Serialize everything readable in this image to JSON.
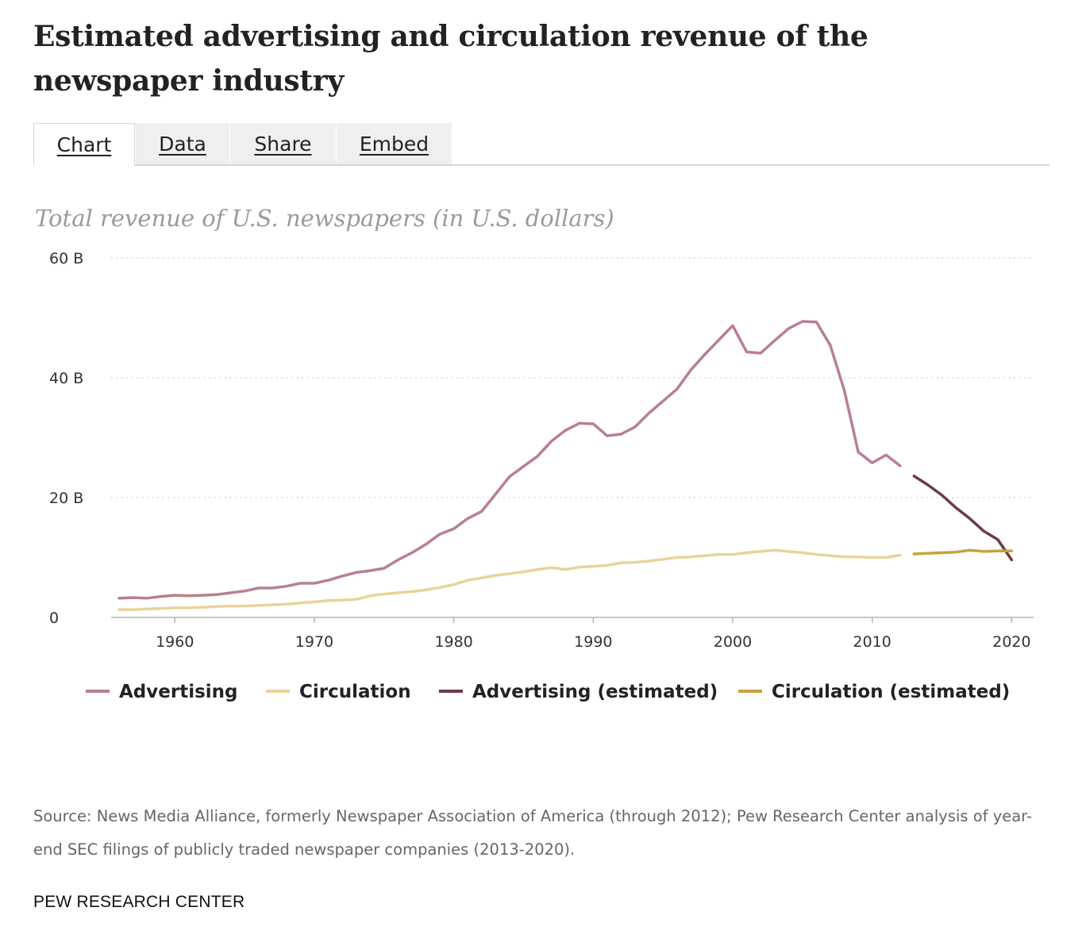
{
  "title": "Estimated advertising and circulation revenue of the newspaper industry",
  "tabs": [
    {
      "label": "Chart",
      "active": true
    },
    {
      "label": "Data",
      "active": false
    },
    {
      "label": "Share",
      "active": false
    },
    {
      "label": "Embed",
      "active": false
    }
  ],
  "source": "Source: News Media Alliance, formerly Newspaper Association of America (through 2012); Pew Research Center analysis of year-end SEC filings of publicly traded newspaper companies (2013-2020).",
  "brand": "PEW RESEARCH CENTER",
  "chart_data": {
    "type": "line",
    "title": "Total revenue of U.S. newspapers (in U.S. dollars)",
    "xlabel": "",
    "ylabel": "",
    "xlim": [
      1956,
      2021
    ],
    "ylim": [
      0,
      60
    ],
    "y_ticks": [
      0,
      20,
      40,
      60
    ],
    "y_tick_labels": [
      "0",
      "20 B",
      "40 B",
      "60 B"
    ],
    "x_ticks": [
      1960,
      1970,
      1980,
      1990,
      2000,
      2010,
      2020
    ],
    "x_tick_labels": [
      "1960",
      "1970",
      "1980",
      "1990",
      "2000",
      "2010",
      "2020"
    ],
    "grid": true,
    "legend_position": "bottom",
    "series": [
      {
        "name": "Advertising",
        "color": "#b9808b",
        "x": [
          1956,
          1957,
          1958,
          1959,
          1960,
          1961,
          1962,
          1963,
          1964,
          1965,
          1966,
          1967,
          1968,
          1969,
          1970,
          1971,
          1972,
          1973,
          1974,
          1975,
          1976,
          1977,
          1978,
          1979,
          1980,
          1981,
          1982,
          1983,
          1984,
          1985,
          1986,
          1987,
          1988,
          1989,
          1990,
          1991,
          1992,
          1993,
          1994,
          1995,
          1996,
          1997,
          1998,
          1999,
          2000,
          2001,
          2002,
          2003,
          2004,
          2005,
          2006,
          2007,
          2008,
          2009,
          2010,
          2011,
          2012
        ],
        "values": [
          3.2,
          3.3,
          3.2,
          3.5,
          3.7,
          3.6,
          3.7,
          3.8,
          4.1,
          4.4,
          4.9,
          4.9,
          5.2,
          5.7,
          5.7,
          6.2,
          6.9,
          7.5,
          7.8,
          8.2,
          9.6,
          10.8,
          12.2,
          13.9,
          14.8,
          16.5,
          17.7,
          20.6,
          23.5,
          25.2,
          26.9,
          29.4,
          31.2,
          32.4,
          32.3,
          30.3,
          30.6,
          31.8,
          34.1,
          36.1,
          38.1,
          41.3,
          43.9,
          46.3,
          48.7,
          44.3,
          44.1,
          46.2,
          48.2,
          49.4,
          49.3,
          45.4,
          37.9,
          27.6,
          25.8,
          27.1,
          25.3
        ]
      },
      {
        "name": "Circulation",
        "color": "#e8d399",
        "x": [
          1956,
          1957,
          1958,
          1959,
          1960,
          1961,
          1962,
          1963,
          1964,
          1965,
          1966,
          1967,
          1968,
          1969,
          1970,
          1971,
          1972,
          1973,
          1974,
          1975,
          1976,
          1977,
          1978,
          1979,
          1980,
          1981,
          1982,
          1983,
          1984,
          1985,
          1986,
          1987,
          1988,
          1989,
          1990,
          1991,
          1992,
          1993,
          1994,
          1995,
          1996,
          1997,
          1998,
          1999,
          2000,
          2001,
          2002,
          2003,
          2004,
          2005,
          2006,
          2007,
          2008,
          2009,
          2010,
          2011,
          2012
        ],
        "values": [
          1.3,
          1.3,
          1.4,
          1.5,
          1.6,
          1.6,
          1.7,
          1.8,
          1.9,
          1.9,
          2.0,
          2.1,
          2.2,
          2.4,
          2.6,
          2.8,
          2.9,
          3.0,
          3.6,
          3.9,
          4.1,
          4.3,
          4.6,
          5.0,
          5.5,
          6.2,
          6.6,
          7.0,
          7.3,
          7.6,
          8.0,
          8.3,
          8.0,
          8.4,
          8.5,
          8.7,
          9.1,
          9.2,
          9.4,
          9.7,
          10.0,
          10.1,
          10.3,
          10.5,
          10.5,
          10.8,
          11.0,
          11.2,
          11.0,
          10.8,
          10.5,
          10.3,
          10.1,
          10.1,
          10.0,
          10.0,
          10.4
        ]
      },
      {
        "name": "Advertising (estimated)",
        "color": "#6e3a47",
        "x": [
          2013,
          2014,
          2015,
          2016,
          2017,
          2018,
          2019,
          2020,
          2021
        ],
        "values": [
          23.6,
          22.1,
          20.4,
          18.3,
          16.5,
          14.4,
          13.0,
          9.6,
          null
        ]
      },
      {
        "name": "Circulation (estimated)",
        "color": "#c9a13d",
        "x": [
          2013,
          2014,
          2015,
          2016,
          2017,
          2018,
          2019,
          2020,
          2021
        ],
        "values": [
          10.6,
          10.7,
          10.8,
          10.9,
          11.2,
          11.0,
          11.1,
          11.1,
          null
        ]
      }
    ]
  }
}
